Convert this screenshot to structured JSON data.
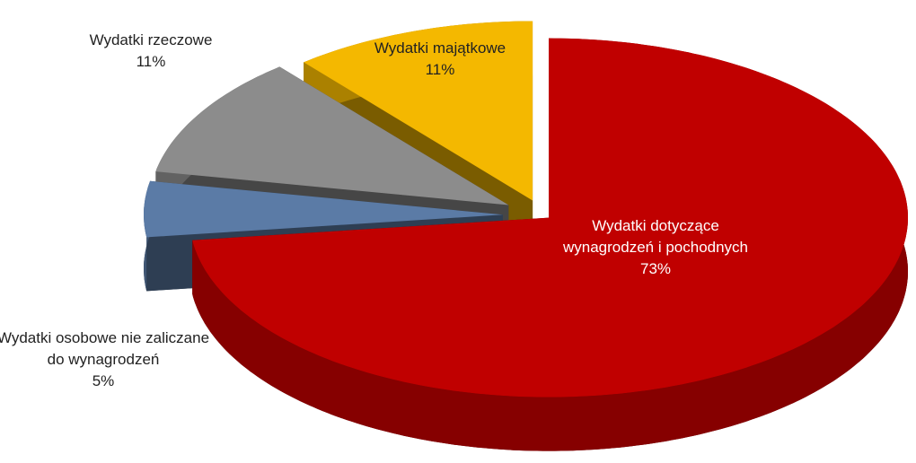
{
  "chart_data": {
    "type": "pie",
    "categories": [
      "Wydatki dotyczące wynagrodzeń i pochodnych",
      "Wydatki osobowe nie zaliczane do wynagrodzeń",
      "Wydatki rzeczowe",
      "Wydatki majątkowe"
    ],
    "values": [
      73,
      5,
      11,
      11
    ],
    "value_labels": [
      "73%",
      "5%",
      "11%",
      "11%"
    ],
    "colors": [
      "#c00000",
      "#5b7ba6",
      "#8c8c8c",
      "#f4b800"
    ]
  }
}
